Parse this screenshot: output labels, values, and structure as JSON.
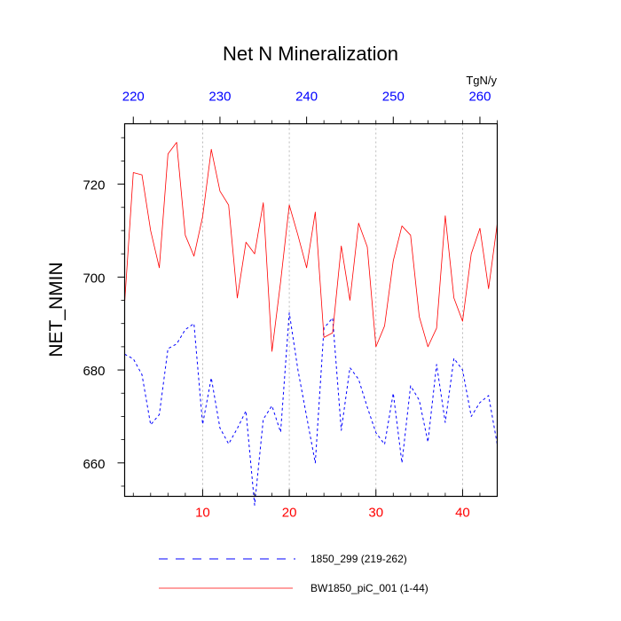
{
  "chart_data": {
    "type": "line",
    "title": "Net N Mineralization",
    "ylabel": "NET_NMIN",
    "units": "TgN/y",
    "grid": "vertical dashed lines at bottom-axis major ticks",
    "legend_placement": "bottom-center",
    "bottom_axis": {
      "range": [
        1,
        44
      ],
      "ticks": [
        "10",
        "20",
        "30",
        "40"
      ],
      "tick_values": [
        10,
        20,
        30,
        40
      ],
      "color": "#ff0000"
    },
    "top_axis": {
      "range": [
        219,
        262
      ],
      "ticks": [
        "220",
        "230",
        "240",
        "250",
        "260"
      ],
      "tick_values": [
        220,
        230,
        240,
        250,
        260
      ],
      "color": "#0000ff"
    },
    "left_axis": {
      "range": [
        652.8,
        733.0
      ],
      "ticks": [
        "660",
        "680",
        "700",
        "720"
      ],
      "tick_values": [
        660,
        680,
        700,
        720
      ]
    },
    "series": [
      {
        "name": "1850_299 (219-262)",
        "color": "#0000ff",
        "dashed": true,
        "x": [
          1,
          2,
          3,
          4,
          5,
          6,
          7,
          8,
          9,
          10,
          11,
          12,
          13,
          14,
          15,
          16,
          17,
          18,
          19,
          20,
          21,
          22,
          23,
          24,
          25,
          26,
          27,
          28,
          29,
          30,
          31,
          32,
          33,
          34,
          35,
          36,
          37,
          38,
          39,
          40,
          41,
          42,
          43,
          44
        ],
        "values": [
          683.4,
          682.4,
          679.0,
          668.2,
          670.4,
          684.6,
          685.6,
          688.7,
          690.0,
          668.3,
          678.3,
          667.5,
          664.1,
          667.4,
          671.2,
          650.9,
          669.4,
          672.3,
          666.6,
          692.3,
          680.0,
          670.0,
          660.0,
          689.0,
          691.2,
          667.0,
          680.5,
          678.0,
          672.0,
          666.5,
          664.0,
          675.0,
          660.0,
          676.6,
          673.5,
          664.5,
          681.2,
          668.7,
          682.5,
          680.0,
          670.0,
          673.0,
          674.5,
          664.0
        ]
      },
      {
        "name": "BW1850_piC_001 (1-44)",
        "color": "#ff0000",
        "dashed": false,
        "x": [
          1,
          2,
          3,
          4,
          5,
          6,
          7,
          8,
          9,
          10,
          11,
          12,
          13,
          14,
          15,
          16,
          17,
          18,
          19,
          20,
          21,
          22,
          23,
          24,
          25,
          26,
          27,
          28,
          29,
          30,
          31,
          32,
          33,
          34,
          35,
          36,
          37,
          38,
          39,
          40,
          41,
          42,
          43,
          44
        ],
        "values": [
          694.5,
          722.5,
          722.0,
          710.0,
          702.0,
          726.5,
          729.0,
          709.0,
          704.5,
          713.0,
          727.5,
          718.5,
          715.5,
          695.5,
          707.5,
          705.0,
          716.0,
          684.0,
          699.0,
          715.5,
          709.0,
          702.0,
          714.0,
          687.0,
          688.0,
          706.7,
          695.0,
          711.6,
          706.5,
          685.0,
          689.5,
          703.5,
          711.0,
          709.0,
          691.5,
          685.0,
          689.0,
          713.2,
          695.5,
          690.5,
          705.0,
          710.5,
          697.5,
          711.5
        ]
      }
    ]
  }
}
